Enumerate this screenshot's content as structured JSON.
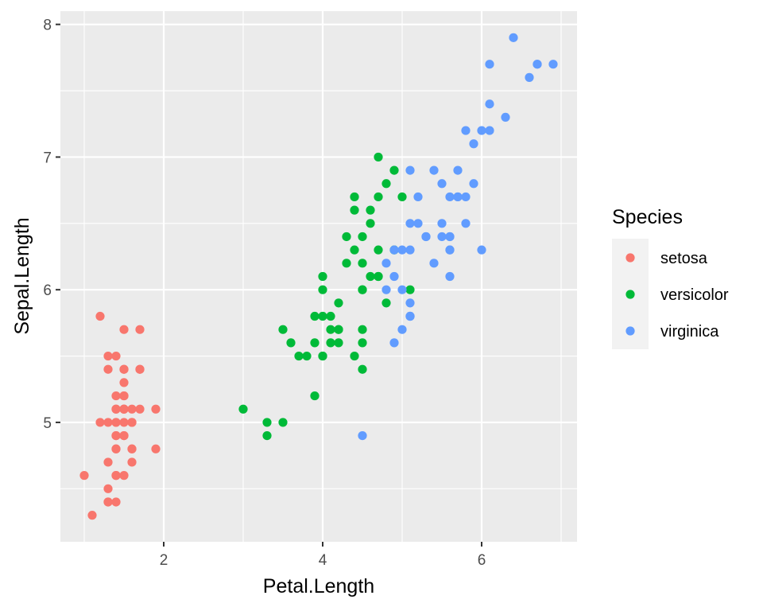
{
  "chart_data": {
    "type": "scatter",
    "title": "",
    "xlabel": "Petal.Length",
    "ylabel": "Sepal.Length",
    "xlim": [
      0.7,
      7.2
    ],
    "ylim": [
      4.1,
      8.1
    ],
    "x_ticks": [
      2,
      4,
      6
    ],
    "y_ticks": [
      5,
      6,
      7,
      8
    ],
    "x_tick_labels": [
      "2",
      "4",
      "6"
    ],
    "y_tick_labels": [
      "5",
      "6",
      "7",
      "8"
    ],
    "grid": true,
    "legend": {
      "title": "Species",
      "position": "right",
      "entries": [
        "setosa",
        "versicolor",
        "virginica"
      ]
    },
    "series": [
      {
        "name": "setosa",
        "color": "#F8766D",
        "points": [
          [
            1.4,
            5.1
          ],
          [
            1.4,
            4.9
          ],
          [
            1.3,
            4.7
          ],
          [
            1.5,
            4.6
          ],
          [
            1.4,
            5.0
          ],
          [
            1.7,
            5.4
          ],
          [
            1.4,
            4.6
          ],
          [
            1.5,
            5.0
          ],
          [
            1.4,
            4.4
          ],
          [
            1.5,
            4.9
          ],
          [
            1.5,
            5.4
          ],
          [
            1.6,
            4.8
          ],
          [
            1.4,
            4.8
          ],
          [
            1.1,
            4.3
          ],
          [
            1.2,
            5.8
          ],
          [
            1.5,
            5.7
          ],
          [
            1.3,
            5.4
          ],
          [
            1.4,
            5.1
          ],
          [
            1.7,
            5.7
          ],
          [
            1.5,
            5.1
          ],
          [
            1.7,
            5.4
          ],
          [
            1.5,
            5.1
          ],
          [
            1.0,
            4.6
          ],
          [
            1.7,
            5.1
          ],
          [
            1.9,
            4.8
          ],
          [
            1.6,
            5.0
          ],
          [
            1.6,
            5.0
          ],
          [
            1.5,
            5.2
          ],
          [
            1.4,
            5.2
          ],
          [
            1.6,
            4.7
          ],
          [
            1.6,
            4.8
          ],
          [
            1.5,
            5.4
          ],
          [
            1.5,
            5.2
          ],
          [
            1.4,
            5.5
          ],
          [
            1.5,
            4.9
          ],
          [
            1.2,
            5.0
          ],
          [
            1.3,
            5.5
          ],
          [
            1.4,
            4.9
          ],
          [
            1.3,
            4.4
          ],
          [
            1.5,
            5.1
          ],
          [
            1.3,
            5.0
          ],
          [
            1.3,
            4.5
          ],
          [
            1.3,
            4.4
          ],
          [
            1.6,
            5.0
          ],
          [
            1.9,
            5.1
          ],
          [
            1.4,
            4.8
          ],
          [
            1.6,
            5.1
          ],
          [
            1.4,
            4.6
          ],
          [
            1.5,
            5.3
          ],
          [
            1.4,
            5.0
          ]
        ]
      },
      {
        "name": "versicolor",
        "color": "#00BA38",
        "points": [
          [
            4.7,
            7.0
          ],
          [
            4.5,
            6.4
          ],
          [
            4.9,
            6.9
          ],
          [
            4.0,
            5.5
          ],
          [
            4.6,
            6.5
          ],
          [
            4.5,
            5.7
          ],
          [
            4.7,
            6.3
          ],
          [
            3.3,
            4.9
          ],
          [
            4.6,
            6.6
          ],
          [
            3.9,
            5.2
          ],
          [
            3.5,
            5.0
          ],
          [
            4.2,
            5.9
          ],
          [
            4.0,
            6.0
          ],
          [
            4.7,
            6.1
          ],
          [
            3.6,
            5.6
          ],
          [
            4.4,
            6.7
          ],
          [
            4.5,
            5.6
          ],
          [
            4.1,
            5.8
          ],
          [
            4.5,
            6.2
          ],
          [
            3.9,
            5.6
          ],
          [
            4.8,
            5.9
          ],
          [
            4.0,
            6.1
          ],
          [
            4.9,
            6.3
          ],
          [
            4.7,
            6.1
          ],
          [
            4.3,
            6.4
          ],
          [
            4.4,
            6.6
          ],
          [
            4.8,
            6.8
          ],
          [
            5.0,
            6.7
          ],
          [
            4.5,
            6.0
          ],
          [
            3.5,
            5.7
          ],
          [
            3.8,
            5.5
          ],
          [
            3.7,
            5.5
          ],
          [
            3.9,
            5.8
          ],
          [
            5.1,
            6.0
          ],
          [
            4.5,
            5.4
          ],
          [
            4.5,
            6.0
          ],
          [
            4.7,
            6.7
          ],
          [
            4.4,
            6.3
          ],
          [
            4.1,
            5.6
          ],
          [
            4.0,
            5.5
          ],
          [
            4.4,
            5.5
          ],
          [
            4.6,
            6.1
          ],
          [
            4.0,
            5.8
          ],
          [
            3.3,
            5.0
          ],
          [
            4.2,
            5.6
          ],
          [
            4.2,
            5.7
          ],
          [
            4.2,
            5.7
          ],
          [
            4.3,
            6.2
          ],
          [
            3.0,
            5.1
          ],
          [
            4.1,
            5.7
          ]
        ]
      },
      {
        "name": "virginica",
        "color": "#619CFF",
        "points": [
          [
            6.0,
            6.3
          ],
          [
            5.1,
            5.8
          ],
          [
            5.9,
            7.1
          ],
          [
            5.6,
            6.3
          ],
          [
            5.8,
            6.5
          ],
          [
            6.6,
            7.6
          ],
          [
            4.5,
            4.9
          ],
          [
            6.3,
            7.3
          ],
          [
            5.8,
            6.7
          ],
          [
            6.1,
            7.2
          ],
          [
            5.1,
            6.5
          ],
          [
            5.3,
            6.4
          ],
          [
            5.5,
            6.8
          ],
          [
            5.0,
            5.7
          ],
          [
            5.1,
            5.8
          ],
          [
            5.3,
            6.4
          ],
          [
            5.5,
            6.5
          ],
          [
            6.7,
            7.7
          ],
          [
            6.9,
            7.7
          ],
          [
            5.0,
            6.0
          ],
          [
            5.7,
            6.9
          ],
          [
            4.9,
            5.6
          ],
          [
            6.7,
            7.7
          ],
          [
            4.9,
            6.3
          ],
          [
            5.7,
            6.7
          ],
          [
            6.0,
            7.2
          ],
          [
            4.8,
            6.2
          ],
          [
            4.9,
            6.1
          ],
          [
            5.6,
            6.4
          ],
          [
            5.8,
            7.2
          ],
          [
            6.1,
            7.4
          ],
          [
            6.4,
            7.9
          ],
          [
            5.6,
            6.4
          ],
          [
            5.1,
            6.3
          ],
          [
            5.6,
            6.1
          ],
          [
            6.1,
            7.7
          ],
          [
            5.6,
            6.3
          ],
          [
            5.5,
            6.4
          ],
          [
            4.8,
            6.0
          ],
          [
            5.4,
            6.9
          ],
          [
            5.6,
            6.7
          ],
          [
            5.1,
            6.9
          ],
          [
            5.1,
            5.8
          ],
          [
            5.9,
            6.8
          ],
          [
            5.7,
            6.7
          ],
          [
            5.2,
            6.7
          ],
          [
            5.0,
            6.3
          ],
          [
            5.2,
            6.5
          ],
          [
            5.4,
            6.2
          ],
          [
            5.1,
            5.9
          ]
        ]
      }
    ]
  }
}
